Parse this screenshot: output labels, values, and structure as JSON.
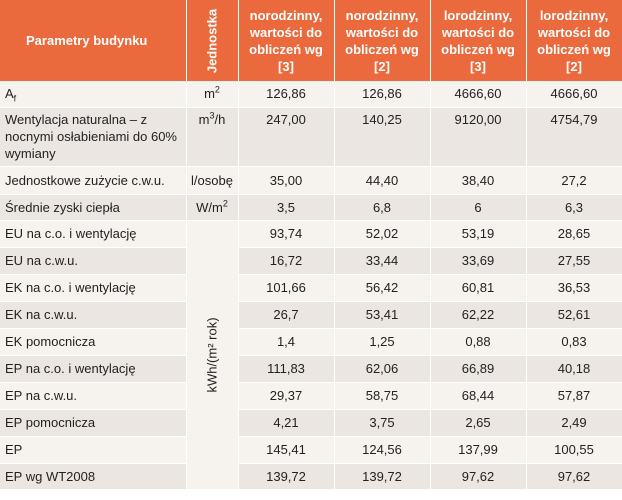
{
  "header": {
    "col1": "Parametry budynku",
    "col2": "Jednostka",
    "col3": "norodzinny, wartości do obliczeń wg [3]",
    "col4": "norodzinny, wartości do obliczeń wg [2]",
    "col5": "lorodzinny, wartości do obliczeń wg [3]",
    "col6": "lorodzinny, wartości do obliczeń wg [2]"
  },
  "energy_unit": "kWh/(m² rok)",
  "rows": [
    {
      "label_main": "A",
      "label_sub": "f",
      "unit_main": "m",
      "unit_sup": "2",
      "v": [
        "126,86",
        "126,86",
        "4666,60",
        "4666,60"
      ]
    },
    {
      "label": "Wentylacja naturalna – z nocnymi osłabieniami do 60% wymiany",
      "unit_main": "m",
      "unit_sup": "3",
      "unit_tail": "/h",
      "v": [
        "247,00",
        "140,25",
        "9120,00",
        "4754,79"
      ]
    },
    {
      "label": "Jednostkowe zużycie c.w.u.",
      "unit": "l/osobę",
      "v": [
        "35,00",
        "44,40",
        "38,40",
        "27,2"
      ]
    },
    {
      "label": "Średnie zyski ciepła",
      "unit_main": "W/m",
      "unit_sup": "2",
      "v": [
        "3,5",
        "6,8",
        "6",
        "6,3"
      ]
    },
    {
      "label": "EU na c.o. i wentylację",
      "v": [
        "93,74",
        "52,02",
        "53,19",
        "28,65"
      ]
    },
    {
      "label": "EU na c.w.u.",
      "v": [
        "16,72",
        "33,44",
        "33,69",
        "27,55"
      ]
    },
    {
      "label": "EK na c.o. i wentylację",
      "v": [
        "101,66",
        "56,42",
        "60,81",
        "36,53"
      ]
    },
    {
      "label": "EK na c.w.u.",
      "v": [
        "26,7",
        "53,41",
        "62,22",
        "52,61"
      ]
    },
    {
      "label": "EK pomocnicza",
      "v": [
        "1,4",
        "1,25",
        "0,88",
        "0,83"
      ]
    },
    {
      "label": "EP na c.o. i wentylację",
      "v": [
        "111,83",
        "62,06",
        "66,89",
        "40,18"
      ]
    },
    {
      "label": "EP na c.w.u.",
      "v": [
        "29,37",
        "58,75",
        "68,44",
        "57,87"
      ]
    },
    {
      "label": "EP pomocnicza",
      "v": [
        "4,21",
        "3,75",
        "2,65",
        "2,49"
      ]
    },
    {
      "label": "EP",
      "v": [
        "145,41",
        "124,56",
        "137,99",
        "100,55"
      ]
    },
    {
      "label": "EP wg WT2008",
      "v": [
        "139,72",
        "139,72",
        "97,62",
        "97,62"
      ]
    }
  ]
}
